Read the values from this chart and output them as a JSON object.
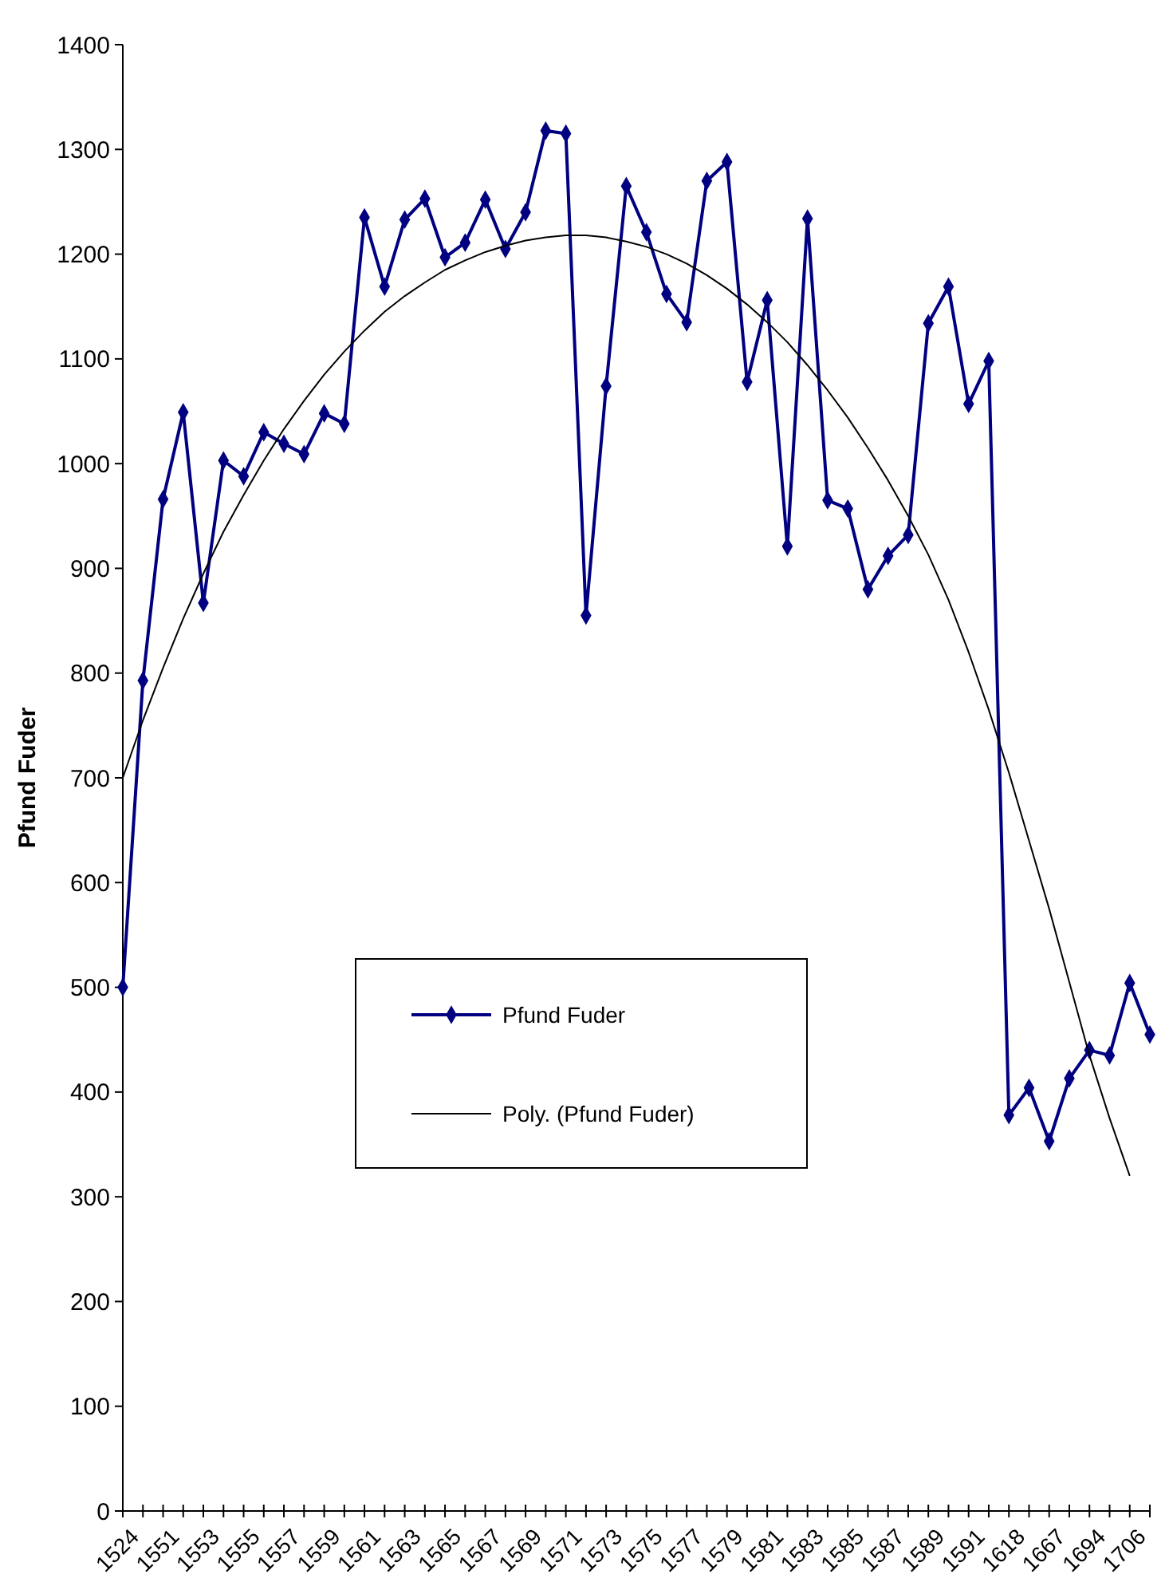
{
  "chart_data": {
    "type": "line",
    "ylabel": "Pfund Fuder",
    "categories": [
      "1524",
      null,
      "1551",
      null,
      "1553",
      null,
      "1555",
      null,
      "1557",
      null,
      "1559",
      null,
      "1561",
      null,
      "1563",
      null,
      "1565",
      null,
      "1567",
      null,
      "1569",
      null,
      "1571",
      null,
      "1573",
      null,
      "1575",
      null,
      "1577",
      null,
      "1579",
      null,
      "1581",
      null,
      "1583",
      null,
      "1585",
      null,
      "1587",
      null,
      "1589",
      null,
      "1591",
      null,
      "1618",
      null,
      "1667",
      null,
      "1694",
      null,
      "1706",
      null
    ],
    "series": [
      {
        "name": "Pfund Fuder",
        "color": "#000080",
        "marker": "diamond",
        "values": [
          500,
          793,
          966,
          1049,
          867,
          1003,
          988,
          1030,
          1019,
          1009,
          1048,
          1038,
          1235,
          1169,
          1233,
          1253,
          1197,
          1211,
          1252,
          1205,
          1240,
          1318,
          1315,
          855,
          1074,
          1265,
          1221,
          1162,
          1135,
          1270,
          1288,
          1078,
          1156,
          921,
          1234,
          965,
          957,
          880,
          912,
          932,
          1134,
          1169,
          1057,
          1098,
          378,
          404,
          353,
          413,
          440,
          435,
          504,
          455
        ]
      },
      {
        "name": "Poly. (Pfund Fuder)",
        "color": "#000000",
        "marker": "none",
        "values": [
          700,
          755,
          805,
          852,
          895,
          935,
          970,
          1003,
          1033,
          1060,
          1085,
          1107,
          1127,
          1145,
          1160,
          1173,
          1185,
          1194,
          1202,
          1208,
          1213,
          1216,
          1218,
          1218,
          1216,
          1212,
          1207,
          1200,
          1191,
          1180,
          1167,
          1152,
          1135,
          1116,
          1094,
          1070,
          1044,
          1015,
          984,
          950,
          913,
          870,
          820,
          765,
          705,
          640,
          575,
          505,
          435,
          375,
          320,
          null
        ]
      }
    ],
    "ylim": [
      0,
      1400
    ],
    "yticks": [
      0,
      100,
      200,
      300,
      400,
      500,
      600,
      700,
      800,
      900,
      1000,
      1100,
      1200,
      1300,
      1400
    ],
    "grid": false,
    "legend": "center"
  }
}
